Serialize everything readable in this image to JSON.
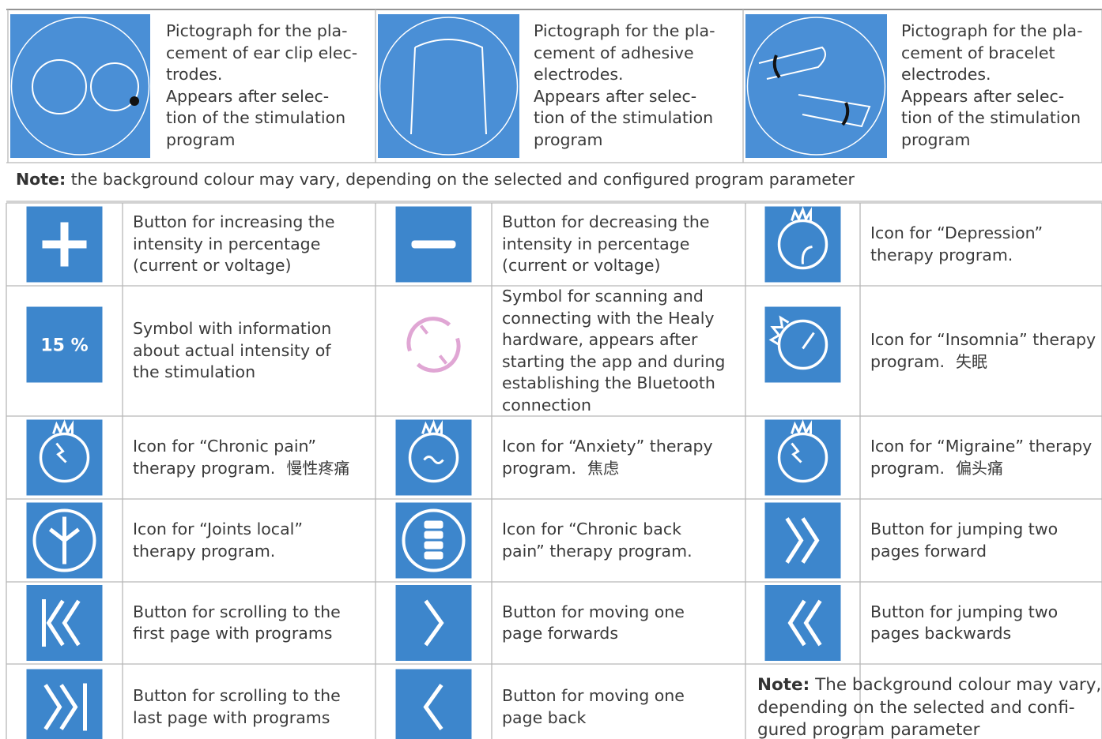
{
  "top_table": {
    "cells": [
      {
        "lines": [
          "Pictograph for the pla-",
          "cement of ear clip elec-",
          "trodes.",
          "Appears after selec-",
          "tion of the stimulation",
          "program"
        ]
      },
      {
        "lines": [
          "Pictograph for the pla-",
          "cement of adhesive",
          "electrodes.",
          "Appears after selec-",
          "tion of the stimulation",
          "program"
        ]
      },
      {
        "lines": [
          "Pictograph for the pla-",
          "cement of bracelet",
          "electrodes.",
          "Appears after selec-",
          "tion of the stimulation",
          "program"
        ]
      }
    ],
    "note": {
      "label": "Note:",
      "text": "the background colour may vary, depending on the selected and configured program parameter"
    }
  },
  "grid": {
    "rows": [
      [
        {
          "lines": [
            "Button for increasing the",
            "intensity in percentage",
            "(current or voltage)"
          ]
        },
        {
          "lines": [
            "Button for decreasing the",
            "intensity in percentage",
            "(current or voltage)"
          ]
        },
        {
          "lines": [
            "Icon for “Depression”",
            "therapy program."
          ]
        }
      ],
      [
        {
          "icon_text": "15 %",
          "lines": [
            "Symbol with information",
            "about actual intensity of",
            "the stimulation"
          ]
        },
        {
          "lines": [
            "Symbol for scanning and",
            "connecting with the Healy",
            "hardware, appears after",
            "starting the app and during",
            "establishing the Bluetooth",
            "connection"
          ]
        },
        {
          "lines": [
            "Icon for “Insomnia” therapy",
            "program."
          ],
          "annotation": "失眠"
        }
      ],
      [
        {
          "lines": [
            "Icon for “Chronic pain”",
            "therapy program."
          ],
          "annotation": "慢性疼痛"
        },
        {
          "lines": [
            "Icon for “Anxiety” therapy",
            "program."
          ],
          "annotation": "焦虑"
        },
        {
          "lines": [
            "Icon for “Migraine” therapy",
            "program."
          ],
          "annotation": "偏头痛"
        }
      ],
      [
        {
          "lines": [
            "Icon for “Joints local”",
            "therapy program."
          ]
        },
        {
          "lines": [
            "Icon for “Chronic back",
            "pain” therapy program."
          ]
        },
        {
          "lines": [
            "Button for jumping two",
            "pages forward"
          ]
        }
      ],
      [
        {
          "lines": [
            "Button for scrolling to the",
            "first page with programs"
          ]
        },
        {
          "lines": [
            "Button for moving one",
            "page forwards"
          ]
        },
        {
          "lines": [
            "Button for jumping two",
            "pages backwards"
          ]
        }
      ],
      [
        {
          "lines": [
            "Button for scrolling to the",
            "last page with programs"
          ]
        },
        {
          "lines": [
            "Button for moving one",
            "page back"
          ]
        },
        {
          "note_label": "Note:",
          "lines": [
            "The background colour may vary,",
            "depending on the selected and confi-",
            "gured program parameter"
          ]
        }
      ]
    ]
  }
}
